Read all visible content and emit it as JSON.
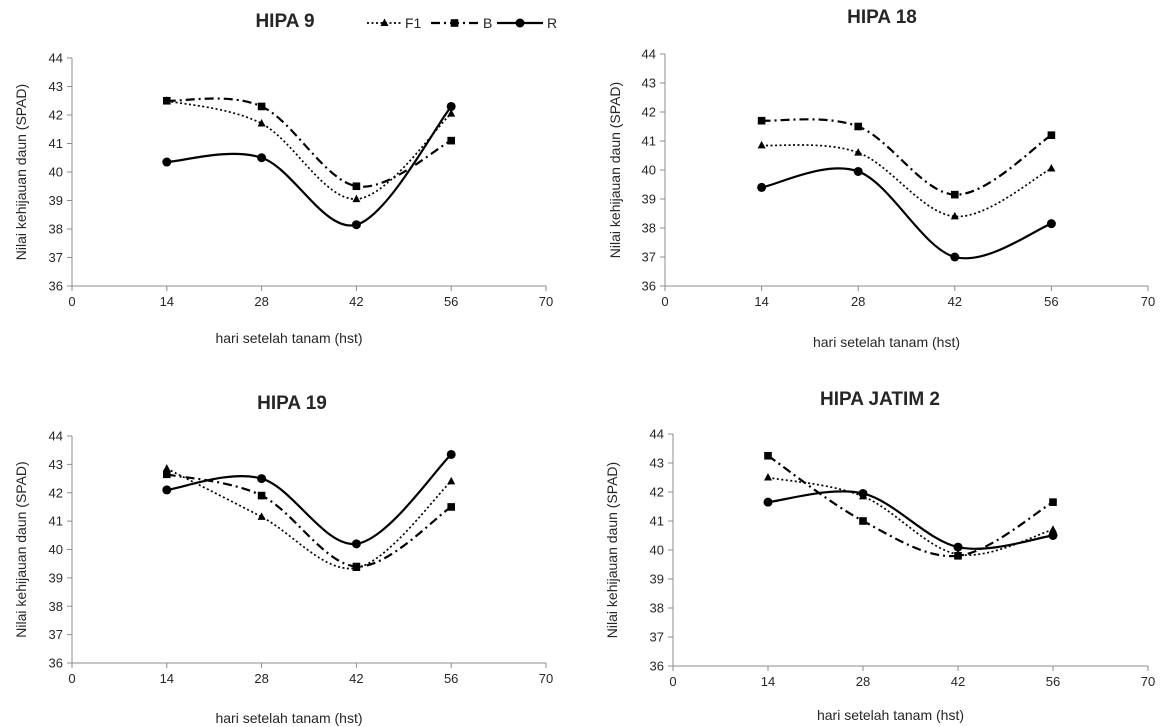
{
  "chart_data": [
    {
      "type": "line",
      "title": "HIPA 9",
      "xlabel": "hari setelah tanam (hst)",
      "ylabel": "Nilai kehijauan daun (SPAD)",
      "xlim": [
        0,
        70
      ],
      "ylim": [
        36,
        44
      ],
      "xticks": [
        "0",
        "14",
        "28",
        "42",
        "56",
        "70"
      ],
      "yticks": [
        "36",
        "37",
        "38",
        "39",
        "40",
        "41",
        "42",
        "43",
        "44"
      ],
      "x": [
        14,
        28,
        42,
        56
      ],
      "grid": false,
      "smooth": true,
      "legend_position": "top",
      "series": [
        {
          "name": "F1",
          "values": [
            42.5,
            41.7,
            39.05,
            42.05
          ],
          "style": "dotted",
          "marker": "triangle"
        },
        {
          "name": "B",
          "values": [
            42.5,
            42.3,
            39.5,
            41.1
          ],
          "style": "dashdot",
          "marker": "square"
        },
        {
          "name": "R",
          "values": [
            40.35,
            40.5,
            38.15,
            42.3
          ],
          "style": "solid",
          "marker": "circle"
        }
      ]
    },
    {
      "type": "line",
      "title": "HIPA 18",
      "xlabel": "hari setelah tanam (hst)",
      "ylabel": "Nilai kehijauan daun (SPAD)",
      "xlim": [
        0,
        70
      ],
      "ylim": [
        36,
        44
      ],
      "xticks": [
        "0",
        "14",
        "28",
        "42",
        "56",
        "70"
      ],
      "yticks": [
        "36",
        "37",
        "38",
        "39",
        "40",
        "41",
        "42",
        "43",
        "44"
      ],
      "x": [
        14,
        28,
        42,
        56
      ],
      "grid": false,
      "smooth": true,
      "series": [
        {
          "name": "F1",
          "values": [
            40.85,
            40.6,
            38.4,
            40.05
          ],
          "style": "dotted",
          "marker": "triangle"
        },
        {
          "name": "B",
          "values": [
            41.7,
            41.5,
            39.15,
            41.2
          ],
          "style": "dashdot",
          "marker": "square"
        },
        {
          "name": "R",
          "values": [
            39.4,
            39.95,
            37.0,
            38.15
          ],
          "style": "solid",
          "marker": "circle"
        }
      ]
    },
    {
      "type": "line",
      "title": "HIPA 19",
      "xlabel": "hari setelah tanam (hst)",
      "ylabel": "Nilai kehijauan daun (SPAD)",
      "xlim": [
        0,
        70
      ],
      "ylim": [
        36,
        44
      ],
      "xticks": [
        "0",
        "14",
        "28",
        "42",
        "56",
        "70"
      ],
      "yticks": [
        "36",
        "37",
        "38",
        "39",
        "40",
        "41",
        "42",
        "43",
        "44"
      ],
      "x": [
        14,
        28,
        42,
        56
      ],
      "grid": false,
      "smooth": true,
      "series": [
        {
          "name": "F1",
          "values": [
            42.85,
            41.15,
            39.35,
            42.4
          ],
          "style": "dotted",
          "marker": "triangle"
        },
        {
          "name": "B",
          "values": [
            42.65,
            41.9,
            39.4,
            41.5
          ],
          "style": "dashdot",
          "marker": "square"
        },
        {
          "name": "R",
          "values": [
            42.1,
            42.5,
            40.2,
            43.35
          ],
          "style": "solid",
          "marker": "circle"
        }
      ]
    },
    {
      "type": "line",
      "title": "HIPA JATIM 2",
      "xlabel": "hari setelah tanam (hst)",
      "ylabel": "Nilai kehijauan daun (SPAD)",
      "xlim": [
        0,
        70
      ],
      "ylim": [
        36,
        44
      ],
      "xticks": [
        "0",
        "14",
        "28",
        "42",
        "56",
        "70"
      ],
      "yticks": [
        "36",
        "37",
        "38",
        "39",
        "40",
        "41",
        "42",
        "43",
        "44"
      ],
      "x": [
        14,
        28,
        42,
        56
      ],
      "grid": false,
      "smooth": true,
      "series": [
        {
          "name": "F1",
          "values": [
            42.5,
            41.85,
            39.85,
            40.7
          ],
          "style": "dotted",
          "marker": "triangle"
        },
        {
          "name": "B",
          "values": [
            43.25,
            41.0,
            39.8,
            41.65
          ],
          "style": "dashdot",
          "marker": "square"
        },
        {
          "name": "R",
          "values": [
            41.65,
            41.95,
            40.1,
            40.5
          ],
          "style": "solid",
          "marker": "circle"
        }
      ]
    }
  ]
}
